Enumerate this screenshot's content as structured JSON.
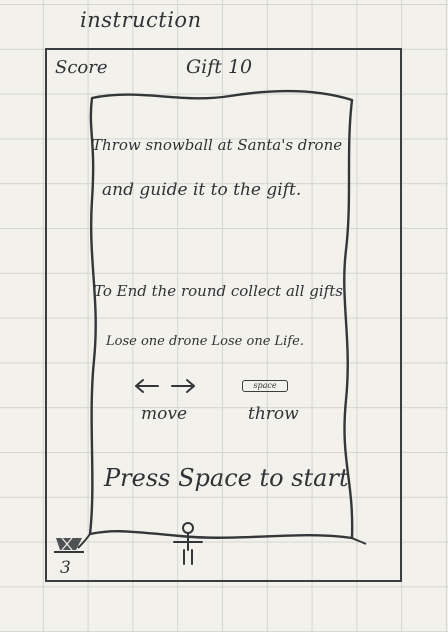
{
  "header": {
    "title": "instruction"
  },
  "hud": {
    "score_label": "Score",
    "gift_label": "Gift 10",
    "lives": "3"
  },
  "instructions": {
    "line1": "Throw snowball at Santa's drone",
    "line2": "and guide it to the gift.",
    "line3": "To End the round collect all gifts",
    "line4": "Lose one drone Lose one Life."
  },
  "controls": {
    "move_keys": "← →",
    "move_label": "move",
    "throw_key": "space",
    "throw_label": "throw"
  },
  "start_prompt": "Press Space to start",
  "icons": {
    "player": "stick-figure-icon",
    "lives": "sleigh-icon",
    "move": "arrow-left-right-icon"
  }
}
